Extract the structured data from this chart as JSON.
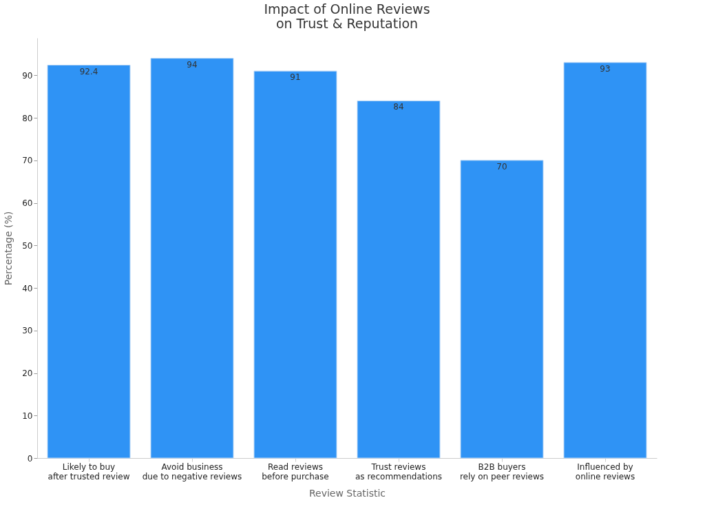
{
  "chart_data": {
    "type": "bar",
    "title": "Impact of Online Reviews\non Trust & Reputation",
    "xlabel": "Review Statistic",
    "ylabel": "Percentage (%)",
    "categories": [
      "Likely to buy\nafter trusted review",
      "Avoid business\ndue to negative reviews",
      "Read reviews\nbefore purchase",
      "Trust reviews\nas recommendations",
      "B2B buyers\nrely on peer reviews",
      "Influenced by\nonline reviews"
    ],
    "values": [
      92.4,
      94,
      91,
      84,
      70,
      93
    ],
    "color": "#2f93f5",
    "ylim": [
      0,
      98.8
    ],
    "yticks": [
      0,
      10,
      20,
      30,
      40,
      50,
      60,
      70,
      80,
      90
    ],
    "grid": false,
    "data_labels": true
  }
}
